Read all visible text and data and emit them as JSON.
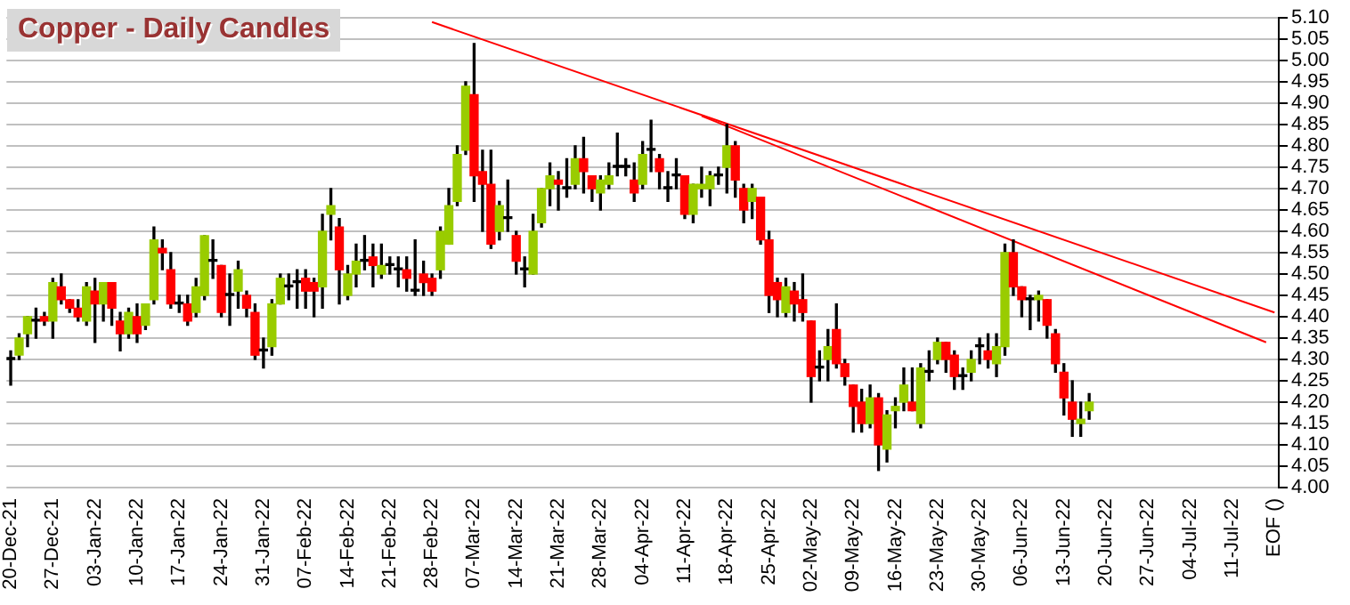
{
  "chart_data": {
    "type": "candlestick",
    "title": "Copper - Daily Candles",
    "categories": [
      "20-Dec-21",
      null,
      null,
      null,
      null,
      "27-Dec-21",
      null,
      null,
      null,
      null,
      "03-Jan-22",
      null,
      null,
      null,
      null,
      "10-Jan-22",
      null,
      null,
      null,
      null,
      "17-Jan-22",
      null,
      null,
      null,
      null,
      "24-Jan-22",
      null,
      null,
      null,
      null,
      "31-Jan-22",
      null,
      null,
      null,
      null,
      "07-Feb-22",
      null,
      null,
      null,
      null,
      "14-Feb-22",
      null,
      null,
      null,
      null,
      "21-Feb-22",
      null,
      null,
      null,
      null,
      "28-Feb-22",
      null,
      null,
      null,
      null,
      "07-Mar-22",
      null,
      null,
      null,
      null,
      "14-Mar-22",
      null,
      null,
      null,
      null,
      "21-Mar-22",
      null,
      null,
      null,
      null,
      "28-Mar-22",
      null,
      null,
      null,
      null,
      "04-Apr-22",
      null,
      null,
      null,
      null,
      "11-Apr-22",
      null,
      null,
      null,
      null,
      "18-Apr-22",
      null,
      null,
      null,
      null,
      "25-Apr-22",
      null,
      null,
      null,
      null,
      "02-May-22",
      null,
      null,
      null,
      null,
      "09-May-22",
      null,
      null,
      null,
      null,
      "16-May-22",
      null,
      null,
      null,
      null,
      "23-May-22",
      null,
      null,
      null,
      null,
      "30-May-22",
      null,
      null,
      null,
      null,
      "06-Jun-22",
      null,
      null,
      null,
      null,
      "13-Jun-22",
      null,
      null,
      null,
      null,
      "20-Jun-22",
      null,
      null,
      null,
      null,
      "27-Jun-22",
      null,
      null,
      null,
      null,
      "04-Jul-22",
      null,
      null,
      null,
      null,
      "11-Jul-22",
      null,
      null,
      null,
      null,
      "EOF ()"
    ],
    "ohlc": [
      [
        4.3,
        4.32,
        4.24,
        4.3
      ],
      [
        4.31,
        4.36,
        4.3,
        4.35
      ],
      [
        4.36,
        4.4,
        4.33,
        4.4
      ],
      [
        4.39,
        4.42,
        4.35,
        4.39
      ],
      [
        4.4,
        4.41,
        4.38,
        4.39
      ],
      [
        4.39,
        4.49,
        4.35,
        4.48
      ],
      [
        4.47,
        4.5,
        4.43,
        4.44
      ],
      [
        4.44,
        4.44,
        4.41,
        4.42
      ],
      [
        4.42,
        4.44,
        4.39,
        4.4
      ],
      [
        4.39,
        4.48,
        4.38,
        4.47
      ],
      [
        4.46,
        4.49,
        4.34,
        4.43
      ],
      [
        4.43,
        4.48,
        4.39,
        4.48
      ],
      [
        4.48,
        4.48,
        4.38,
        4.42
      ],
      [
        4.39,
        4.41,
        4.32,
        4.36
      ],
      [
        4.36,
        4.42,
        4.35,
        4.41
      ],
      [
        4.4,
        4.43,
        4.34,
        4.36
      ],
      [
        4.38,
        4.43,
        4.37,
        4.43
      ],
      [
        4.44,
        4.61,
        4.43,
        4.58
      ],
      [
        4.56,
        4.58,
        4.51,
        4.55
      ],
      [
        4.51,
        4.55,
        4.42,
        4.43
      ],
      [
        4.43,
        4.45,
        4.41,
        4.43
      ],
      [
        4.43,
        4.45,
        4.38,
        4.39
      ],
      [
        4.41,
        4.49,
        4.4,
        4.47
      ],
      [
        4.45,
        4.59,
        4.44,
        4.59
      ],
      [
        4.53,
        4.58,
        4.49,
        4.53
      ],
      [
        4.52,
        4.52,
        4.4,
        4.41
      ],
      [
        4.45,
        4.5,
        4.38,
        4.45
      ],
      [
        4.46,
        4.53,
        4.42,
        4.51
      ],
      [
        4.45,
        4.46,
        4.4,
        4.42
      ],
      [
        4.41,
        4.43,
        4.3,
        4.31
      ],
      [
        4.32,
        4.35,
        4.28,
        4.32
      ],
      [
        4.33,
        4.44,
        4.31,
        4.43
      ],
      [
        4.43,
        4.5,
        4.43,
        4.49
      ],
      [
        4.47,
        4.5,
        4.44,
        4.47
      ],
      [
        4.48,
        4.51,
        4.42,
        4.48
      ],
      [
        4.49,
        4.51,
        4.42,
        4.46
      ],
      [
        4.48,
        4.49,
        4.4,
        4.46
      ],
      [
        4.47,
        4.64,
        4.42,
        4.6
      ],
      [
        4.64,
        4.7,
        4.58,
        4.66
      ],
      [
        4.61,
        4.63,
        4.43,
        4.51
      ],
      [
        4.45,
        4.52,
        4.44,
        4.5
      ],
      [
        4.5,
        4.57,
        4.47,
        4.53
      ],
      [
        4.53,
        4.59,
        4.51,
        4.53
      ],
      [
        4.54,
        4.57,
        4.47,
        4.52
      ],
      [
        4.5,
        4.57,
        4.49,
        4.52
      ],
      [
        4.52,
        4.54,
        4.5,
        4.52
      ],
      [
        4.51,
        4.54,
        4.47,
        4.51
      ],
      [
        4.51,
        4.54,
        4.46,
        4.49
      ],
      [
        4.46,
        4.58,
        4.45,
        4.46
      ],
      [
        4.5,
        4.53,
        4.45,
        4.48
      ],
      [
        4.49,
        4.5,
        4.45,
        4.46
      ],
      [
        4.51,
        4.61,
        4.49,
        4.6
      ],
      [
        4.57,
        4.7,
        4.57,
        4.66
      ],
      [
        4.67,
        4.8,
        4.66,
        4.78
      ],
      [
        4.79,
        4.95,
        4.78,
        4.94
      ],
      [
        4.92,
        5.04,
        4.67,
        4.73
      ],
      [
        4.74,
        4.79,
        4.6,
        4.71
      ],
      [
        4.71,
        4.79,
        4.56,
        4.57
      ],
      [
        4.6,
        4.67,
        4.58,
        4.66
      ],
      [
        4.63,
        4.72,
        4.6,
        4.63
      ],
      [
        4.59,
        4.6,
        4.5,
        4.53
      ],
      [
        4.51,
        4.54,
        4.47,
        4.51
      ],
      [
        4.5,
        4.64,
        4.5,
        4.6
      ],
      [
        4.62,
        4.7,
        4.61,
        4.7
      ],
      [
        4.7,
        4.76,
        4.66,
        4.73
      ],
      [
        4.72,
        4.74,
        4.65,
        4.71
      ],
      [
        4.7,
        4.77,
        4.68,
        4.7
      ],
      [
        4.71,
        4.8,
        4.7,
        4.77
      ],
      [
        4.77,
        4.82,
        4.69,
        4.74
      ],
      [
        4.73,
        4.73,
        4.67,
        4.7
      ],
      [
        4.69,
        4.73,
        4.65,
        4.72
      ],
      [
        4.71,
        4.76,
        4.7,
        4.73
      ],
      [
        4.75,
        4.83,
        4.73,
        4.75
      ],
      [
        4.75,
        4.77,
        4.73,
        4.75
      ],
      [
        4.72,
        4.76,
        4.67,
        4.69
      ],
      [
        4.71,
        4.81,
        4.7,
        4.78
      ],
      [
        4.79,
        4.86,
        4.74,
        4.79
      ],
      [
        4.77,
        4.78,
        4.7,
        4.74
      ],
      [
        4.7,
        4.74,
        4.67,
        4.7
      ],
      [
        4.73,
        4.77,
        4.7,
        4.73
      ],
      [
        4.73,
        4.73,
        4.63,
        4.64
      ],
      [
        4.64,
        4.71,
        4.62,
        4.71
      ],
      [
        4.7,
        4.75,
        4.68,
        4.71
      ],
      [
        4.7,
        4.74,
        4.66,
        4.73
      ],
      [
        4.73,
        4.75,
        4.71,
        4.73
      ],
      [
        4.75,
        4.85,
        4.69,
        4.8
      ],
      [
        4.8,
        4.81,
        4.68,
        4.72
      ],
      [
        4.7,
        4.71,
        4.62,
        4.65
      ],
      [
        4.67,
        4.71,
        4.63,
        4.7
      ],
      [
        4.68,
        4.68,
        4.57,
        4.58
      ],
      [
        4.58,
        4.6,
        4.41,
        4.45
      ],
      [
        4.48,
        4.49,
        4.4,
        4.44
      ],
      [
        4.41,
        4.49,
        4.4,
        4.47
      ],
      [
        4.46,
        4.48,
        4.39,
        4.43
      ],
      [
        4.44,
        4.5,
        4.39,
        4.41
      ],
      [
        4.39,
        4.39,
        4.2,
        4.26
      ],
      [
        4.28,
        4.32,
        4.25,
        4.28
      ],
      [
        4.3,
        4.37,
        4.25,
        4.33
      ],
      [
        4.37,
        4.43,
        4.28,
        4.29
      ],
      [
        4.29,
        4.3,
        4.24,
        4.26
      ],
      [
        4.24,
        4.24,
        4.13,
        4.19
      ],
      [
        4.2,
        4.23,
        4.13,
        4.15
      ],
      [
        4.15,
        4.24,
        4.14,
        4.21
      ],
      [
        4.21,
        4.22,
        4.04,
        4.1
      ],
      [
        4.09,
        4.18,
        4.06,
        4.17
      ],
      [
        4.18,
        4.21,
        4.14,
        4.19
      ],
      [
        4.2,
        4.28,
        4.18,
        4.24
      ],
      [
        4.2,
        4.28,
        4.18,
        4.18
      ],
      [
        4.15,
        4.29,
        4.14,
        4.28
      ],
      [
        4.27,
        4.32,
        4.25,
        4.27
      ],
      [
        4.3,
        4.35,
        4.29,
        4.34
      ],
      [
        4.34,
        4.34,
        4.27,
        4.3
      ],
      [
        4.31,
        4.32,
        4.23,
        4.26
      ],
      [
        4.26,
        4.28,
        4.23,
        4.26
      ],
      [
        4.27,
        4.32,
        4.25,
        4.3
      ],
      [
        4.33,
        4.35,
        4.29,
        4.33
      ],
      [
        4.32,
        4.36,
        4.28,
        4.3
      ],
      [
        4.29,
        4.36,
        4.26,
        4.33
      ],
      [
        4.33,
        4.57,
        4.31,
        4.55
      ],
      [
        4.55,
        4.58,
        4.45,
        4.47
      ],
      [
        4.47,
        4.47,
        4.4,
        4.44
      ],
      [
        4.44,
        4.45,
        4.37,
        4.44
      ],
      [
        4.44,
        4.46,
        4.39,
        4.45
      ],
      [
        4.44,
        4.44,
        4.35,
        4.38
      ],
      [
        4.36,
        4.37,
        4.27,
        4.29
      ],
      [
        4.27,
        4.29,
        4.17,
        4.21
      ],
      [
        4.2,
        4.25,
        4.12,
        4.16
      ],
      [
        4.15,
        4.2,
        4.12,
        4.16
      ],
      [
        4.18,
        4.22,
        4.16,
        4.2
      ],
      null,
      null,
      null,
      null,
      null,
      null,
      null,
      null,
      null,
      null,
      null,
      null,
      null,
      null,
      null,
      null,
      null,
      null,
      null,
      null,
      null,
      null
    ],
    "colors": [
      "#000000",
      "#99cc00",
      "#99cc00",
      "#000000",
      "#ff0000",
      "#99cc00",
      "#ff0000",
      "#ff0000",
      "#ff0000",
      "#99cc00",
      "#ff0000",
      "#99cc00",
      "#ff0000",
      "#ff0000",
      "#99cc00",
      "#ff0000",
      "#99cc00",
      "#99cc00",
      "#ff0000",
      "#ff0000",
      "#000000",
      "#ff0000",
      "#99cc00",
      "#99cc00",
      "#000000",
      "#ff0000",
      "#000000",
      "#99cc00",
      "#ff0000",
      "#ff0000",
      "#000000",
      "#99cc00",
      "#99cc00",
      "#000000",
      "#000000",
      "#ff0000",
      "#ff0000",
      "#99cc00",
      "#99cc00",
      "#ff0000",
      "#99cc00",
      "#99cc00",
      "#000000",
      "#ff0000",
      "#99cc00",
      "#000000",
      "#000000",
      "#ff0000",
      "#000000",
      "#ff0000",
      "#ff0000",
      "#99cc00",
      "#99cc00",
      "#99cc00",
      "#99cc00",
      "#ff0000",
      "#ff0000",
      "#ff0000",
      "#99cc00",
      "#000000",
      "#ff0000",
      "#000000",
      "#99cc00",
      "#99cc00",
      "#99cc00",
      "#ff0000",
      "#000000",
      "#99cc00",
      "#ff0000",
      "#ff0000",
      "#99cc00",
      "#99cc00",
      "#000000",
      "#000000",
      "#ff0000",
      "#99cc00",
      "#000000",
      "#ff0000",
      "#000000",
      "#000000",
      "#ff0000",
      "#99cc00",
      "#99cc00",
      "#99cc00",
      "#000000",
      "#99cc00",
      "#ff0000",
      "#ff0000",
      "#99cc00",
      "#ff0000",
      "#ff0000",
      "#ff0000",
      "#99cc00",
      "#ff0000",
      "#ff0000",
      "#ff0000",
      "#000000",
      "#99cc00",
      "#ff0000",
      "#ff0000",
      "#ff0000",
      "#ff0000",
      "#99cc00",
      "#ff0000",
      "#99cc00",
      "#99cc00",
      "#99cc00",
      "#ff0000",
      "#99cc00",
      "#000000",
      "#99cc00",
      "#ff0000",
      "#ff0000",
      "#000000",
      "#99cc00",
      "#000000",
      "#ff0000",
      "#99cc00",
      "#99cc00",
      "#ff0000",
      "#ff0000",
      "#000000",
      "#99cc00",
      "#ff0000",
      "#ff0000",
      "#ff0000",
      "#ff0000",
      "#99cc00",
      "#99cc00",
      null,
      null,
      null,
      null,
      null,
      null,
      null,
      null,
      null,
      null,
      null,
      null,
      null,
      null,
      null,
      null,
      null,
      null,
      null,
      null,
      null,
      null
    ],
    "series": [
      {
        "type": "line",
        "color": "#ff0000",
        "values": [
          null,
          null,
          null,
          null,
          null,
          null,
          null,
          null,
          null,
          null,
          null,
          null,
          null,
          null,
          null,
          null,
          null,
          null,
          null,
          null,
          null,
          null,
          null,
          null,
          null,
          null,
          null,
          null,
          null,
          null,
          null,
          null,
          null,
          null,
          null,
          null,
          null,
          null,
          null,
          null,
          null,
          null,
          null,
          null,
          null,
          null,
          null,
          null,
          null,
          null,
          5.09,
          null,
          null,
          null,
          null,
          null,
          null,
          null,
          null,
          null,
          null,
          null,
          null,
          null,
          null,
          null,
          null,
          null,
          null,
          null,
          null,
          null,
          null,
          null,
          null,
          null,
          null,
          null,
          null,
          null,
          null,
          null,
          null,
          null,
          null,
          null,
          null,
          null,
          null,
          null,
          null,
          null,
          null,
          null,
          null,
          null,
          null,
          null,
          null,
          null,
          null,
          null,
          null,
          null,
          null,
          null,
          null,
          null,
          null,
          null,
          null,
          null,
          null,
          null,
          null,
          null,
          null,
          null,
          null,
          null,
          null,
          null,
          null,
          null,
          null,
          null,
          null,
          null,
          null,
          null,
          null,
          null,
          null,
          null,
          null,
          null,
          null,
          null,
          null,
          null,
          null,
          null,
          null,
          null,
          null,
          null,
          null,
          null,
          null,
          null,
          4.41
        ]
      },
      {
        "type": "line",
        "color": "#ff0000",
        "values": [
          null,
          null,
          null,
          null,
          null,
          null,
          null,
          null,
          null,
          null,
          null,
          null,
          null,
          null,
          null,
          null,
          null,
          null,
          null,
          null,
          null,
          null,
          null,
          null,
          null,
          null,
          null,
          null,
          null,
          null,
          null,
          null,
          null,
          null,
          null,
          null,
          null,
          null,
          null,
          null,
          null,
          null,
          null,
          null,
          null,
          null,
          null,
          null,
          null,
          null,
          null,
          null,
          null,
          null,
          null,
          null,
          null,
          null,
          null,
          null,
          null,
          null,
          null,
          null,
          null,
          null,
          null,
          null,
          null,
          null,
          null,
          null,
          null,
          null,
          null,
          null,
          null,
          null,
          null,
          null,
          null,
          null,
          4.87,
          null,
          null,
          null,
          null,
          null,
          null,
          null,
          null,
          null,
          null,
          null,
          null,
          null,
          null,
          null,
          null,
          null,
          null,
          null,
          null,
          null,
          null,
          null,
          null,
          null,
          null,
          null,
          null,
          null,
          null,
          null,
          null,
          null,
          null,
          null,
          null,
          null,
          null,
          null,
          null,
          null,
          null,
          null,
          null,
          null,
          null,
          null,
          null,
          null,
          null,
          null,
          null,
          null,
          null,
          null,
          null,
          null,
          null,
          null,
          null,
          null,
          null,
          null,
          null,
          null,
          null,
          4.34,
          null
        ]
      }
    ],
    "ylim": [
      4.0,
      5.1
    ],
    "yticks": [
      {
        "value": 4.0,
        "label": "4.00"
      },
      4.05,
      {
        "value": 4.1,
        "label": "4.10"
      },
      4.15,
      {
        "value": 4.2,
        "label": "4.20"
      },
      4.25,
      {
        "value": 4.3,
        "label": "4.30"
      },
      4.35,
      {
        "value": 4.4,
        "label": "4.40"
      },
      4.45,
      {
        "value": 4.5,
        "label": "4.50"
      },
      4.55,
      {
        "value": 4.6,
        "label": "4.60"
      },
      4.65,
      {
        "value": 4.7,
        "label": "4.70"
      },
      4.75,
      {
        "value": 4.8,
        "label": "4.80"
      },
      4.85,
      {
        "value": 4.9,
        "label": "4.90"
      },
      4.95,
      {
        "value": 5.0,
        "label": "5.00"
      },
      5.05,
      {
        "value": 5.1,
        "label": "5.10"
      }
    ],
    "grid": "y"
  }
}
